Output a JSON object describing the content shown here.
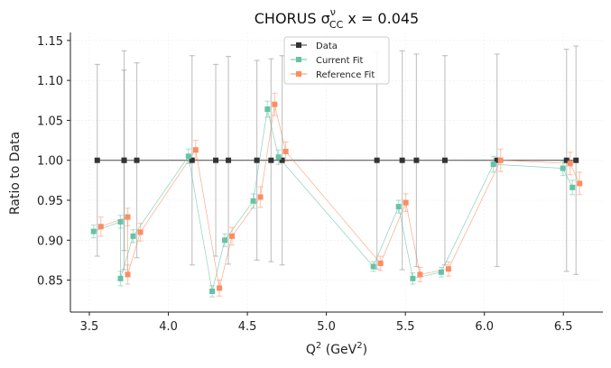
{
  "chart_data": {
    "type": "scatter",
    "title": "CHORUS",
    "title_sigma": "σ",
    "title_sup": "ν",
    "title_sub": "CC",
    "title_suffix": " x = 0.045",
    "xlabel": "Q",
    "xlabel_sup": "2",
    "xlabel_unit": " (GeV",
    "xlabel_unit_sup": "2",
    "xlabel_end": ")",
    "ylabel": "Ratio to Data",
    "xlim": [
      3.38,
      6.75
    ],
    "ylim": [
      0.81,
      1.16
    ],
    "xticks": [
      3.5,
      4.0,
      4.5,
      5.0,
      5.5,
      6.0,
      6.5
    ],
    "xtick_labels": [
      "3.5",
      "4.0",
      "4.5",
      "5.0",
      "5.5",
      "6.0",
      "6.5"
    ],
    "yticks": [
      0.85,
      0.9,
      0.95,
      1.0,
      1.05,
      1.1,
      1.15
    ],
    "ytick_labels": [
      "0.85",
      "0.90",
      "0.95",
      "1.00",
      "1.05",
      "1.10",
      "1.15"
    ],
    "grid": true,
    "legend_position": "top-center",
    "x": [
      3.55,
      3.72,
      3.72,
      3.8,
      4.15,
      4.3,
      4.38,
      4.56,
      4.65,
      4.72,
      5.32,
      5.48,
      5.57,
      5.75,
      6.08,
      6.52,
      6.58
    ],
    "series": [
      {
        "name": "Data",
        "color": "#333333",
        "values": [
          1.0,
          1.0,
          1.0,
          1.0,
          1.0,
          1.0,
          1.0,
          1.0,
          1.0,
          1.0,
          1.0,
          1.0,
          1.0,
          1.0,
          1.0,
          1.0,
          1.0
        ],
        "err_plus": [
          0.12,
          0.137,
          0.113,
          0.122,
          0.131,
          0.12,
          0.13,
          0.125,
          0.127,
          0.131,
          0.136,
          0.137,
          0.133,
          0.131,
          0.133,
          0.139,
          0.143
        ],
        "err_minus": [
          0.12,
          0.137,
          0.113,
          0.122,
          0.131,
          0.12,
          0.13,
          0.125,
          0.127,
          0.131,
          0.136,
          0.137,
          0.133,
          0.131,
          0.133,
          0.139,
          0.143
        ]
      },
      {
        "name": "Current Fit",
        "color": "#66c2a5",
        "values": [
          0.911,
          0.923,
          0.852,
          0.905,
          1.005,
          0.836,
          0.9,
          0.949,
          1.064,
          1.004,
          0.867,
          0.942,
          0.852,
          0.86,
          0.995,
          0.99,
          0.966
        ],
        "err": [
          0.008,
          0.008,
          0.009,
          0.008,
          0.009,
          0.007,
          0.008,
          0.009,
          0.01,
          0.009,
          0.006,
          0.008,
          0.007,
          0.006,
          0.01,
          0.009,
          0.009
        ]
      },
      {
        "name": "Reference Fit",
        "color": "#fc8d62",
        "values": [
          0.917,
          0.929,
          0.857,
          0.91,
          1.013,
          0.84,
          0.905,
          0.954,
          1.07,
          1.011,
          0.871,
          0.947,
          0.857,
          0.864,
          1.0,
          0.996,
          0.971
        ],
        "err": [
          0.012,
          0.011,
          0.012,
          0.011,
          0.012,
          0.01,
          0.011,
          0.013,
          0.014,
          0.012,
          0.009,
          0.011,
          0.009,
          0.009,
          0.014,
          0.014,
          0.014
        ]
      }
    ]
  }
}
